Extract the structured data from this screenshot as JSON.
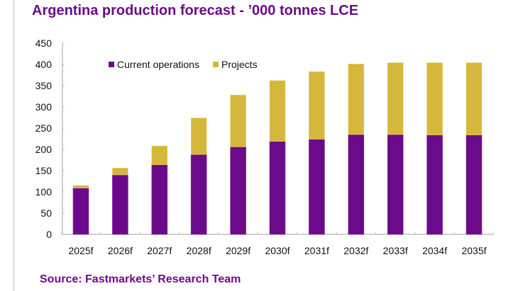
{
  "title": "Argentina production forecast - ’000 tonnes LCE",
  "source": "Source: Fastmarkets’ Research Team",
  "colors": {
    "title": "#6a0d86",
    "current_operations": "#6b0a8a",
    "projects": "#d4b73b",
    "axis": "#bfbfbf"
  },
  "chart_data": {
    "type": "bar",
    "stacked": true,
    "title": "Argentina production forecast - ’000 tonnes LCE",
    "xlabel": "",
    "ylabel": "",
    "categories": [
      "2025f",
      "2026f",
      "2027f",
      "2028f",
      "2029f",
      "2030f",
      "2031f",
      "2032f",
      "2033f",
      "2034f",
      "2035f"
    ],
    "series": [
      {
        "name": "Current operations",
        "color": "#6b0a8a",
        "values": [
          109,
          140,
          164,
          188,
          206,
          219,
          224,
          235,
          235,
          234,
          234
        ]
      },
      {
        "name": "Projects",
        "color": "#d4b73b",
        "values": [
          6,
          16,
          44,
          86,
          122,
          143,
          159,
          166,
          169,
          170,
          170
        ]
      }
    ],
    "ylim": [
      0,
      450
    ],
    "yticks": [
      0,
      50,
      100,
      150,
      200,
      250,
      300,
      350,
      400,
      450
    ],
    "grid": false,
    "legend": "top-left inside plot"
  }
}
